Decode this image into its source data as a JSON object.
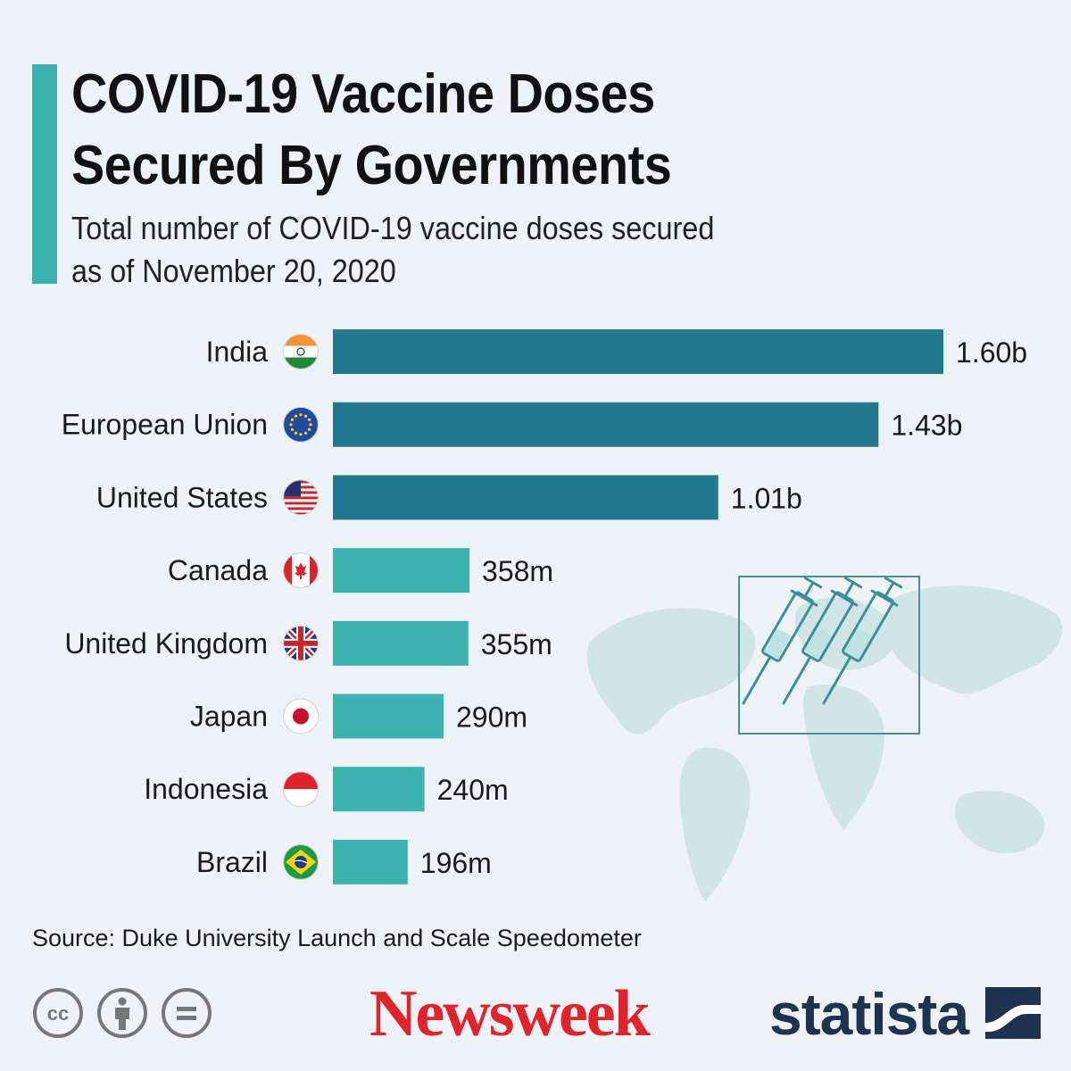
{
  "header": {
    "title_line1": "COVID-19 Vaccine Doses",
    "title_line2": "Secured By Governments",
    "subtitle_line1": "Total number of COVID-19 vaccine doses secured",
    "subtitle_line2": "as of November 20, 2020"
  },
  "chart_data": {
    "type": "bar",
    "orientation": "horizontal",
    "title": "COVID-19 Vaccine Doses Secured By Governments",
    "unit": "doses (millions)",
    "categories": [
      "India",
      "European Union",
      "United States",
      "Canada",
      "United Kingdom",
      "Japan",
      "Indonesia",
      "Brazil"
    ],
    "flags": [
      "india-flag-icon",
      "eu-flag-icon",
      "us-flag-icon",
      "canada-flag-icon",
      "uk-flag-icon",
      "japan-flag-icon",
      "indonesia-flag-icon",
      "brazil-flag-icon"
    ],
    "values": [
      1600,
      1430,
      1010,
      358,
      355,
      290,
      240,
      196
    ],
    "labels": [
      "1.60b",
      "1.43b",
      "1.01b",
      "358m",
      "355m",
      "290m",
      "240m",
      "196m"
    ],
    "highlight_count": 3,
    "colors": {
      "highlight": "#21788c",
      "normal": "#3bb3b0"
    },
    "xlim": [
      0,
      1600
    ]
  },
  "footer": {
    "source": "Source: Duke University Launch and Scale Speedometer",
    "license_icons": [
      "cc-icon",
      "attribution-icon",
      "no-derivatives-icon"
    ],
    "cc_text": "cc",
    "logos": {
      "newsweek": "Newsweek",
      "statista": "statista"
    }
  },
  "colors": {
    "accent": "#3bb3b0",
    "background": "#eef3f7",
    "newsweek_red": "#e2232a",
    "statista_navy": "#1e3350"
  }
}
